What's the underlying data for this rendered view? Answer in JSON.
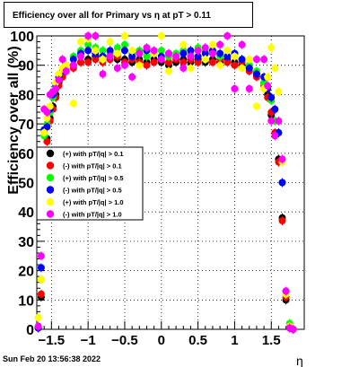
{
  "title": "Efficiency over all for Primary vs   η at pT > 0.11",
  "timestamp": "Sun Feb 20 13:56:38 2022",
  "chart_data": {
    "type": "scatter",
    "title": "Efficiency over all for Primary vs   η at pT > 0.11",
    "xlabel": "η",
    "ylabel": "Efficiency over all (%)",
    "xlim": [
      -1.7,
      1.95
    ],
    "ylim": [
      0,
      100
    ],
    "xticks": [
      -1.5,
      -1,
      -0.5,
      0,
      0.5,
      1,
      1.5
    ],
    "xtick_labels": [
      "−1.5",
      "−1",
      "−0.5",
      "0",
      "0.5",
      "1",
      "1.5"
    ],
    "yticks": [
      0,
      10,
      20,
      30,
      40,
      50,
      60,
      70,
      80,
      90,
      100
    ],
    "grid": true,
    "legend_position": "middle-left",
    "series": [
      {
        "name": "(+) with pT/|q| > 0.1",
        "color": "#000000",
        "x": [
          -1.68,
          -1.64,
          -1.6,
          -1.56,
          -1.52,
          -1.48,
          -1.44,
          -1.4,
          -1.35,
          -1.3,
          -1.2,
          -1.1,
          -1.0,
          -0.9,
          -0.8,
          -0.7,
          -0.6,
          -0.5,
          -0.4,
          -0.3,
          -0.2,
          -0.1,
          0.0,
          0.1,
          0.2,
          0.3,
          0.4,
          0.5,
          0.6,
          0.7,
          0.8,
          0.9,
          1.0,
          1.1,
          1.2,
          1.3,
          1.4,
          1.45,
          1.5,
          1.55,
          1.6,
          1.65,
          1.7,
          1.75,
          1.8
        ],
        "y": [
          0.5,
          11,
          55,
          65,
          72,
          76,
          80,
          84,
          86,
          88,
          90,
          91,
          92,
          93,
          92,
          93,
          92,
          92,
          91,
          92,
          91,
          92,
          91,
          90,
          91,
          92,
          91,
          92,
          91,
          92,
          91,
          92,
          91,
          90,
          89,
          87,
          84,
          80,
          73,
          66,
          58,
          38,
          10,
          0.5,
          0
        ]
      },
      {
        "name": "(-) with pT/|q| > 0.1",
        "color": "#ff0000",
        "x": [
          -1.68,
          -1.64,
          -1.6,
          -1.56,
          -1.52,
          -1.48,
          -1.44,
          -1.4,
          -1.35,
          -1.3,
          -1.2,
          -1.1,
          -1.0,
          -0.9,
          -0.8,
          -0.7,
          -0.6,
          -0.5,
          -0.4,
          -0.3,
          -0.2,
          -0.1,
          0.0,
          0.1,
          0.2,
          0.3,
          0.4,
          0.5,
          0.6,
          0.7,
          0.8,
          0.9,
          1.0,
          1.1,
          1.2,
          1.3,
          1.4,
          1.45,
          1.5,
          1.55,
          1.6,
          1.65,
          1.7,
          1.75,
          1.8
        ],
        "y": [
          0.5,
          12,
          56,
          64,
          71,
          75,
          79,
          83,
          86,
          88,
          89,
          91,
          91,
          92,
          91,
          92,
          93,
          91,
          92,
          91,
          90,
          91,
          92,
          91,
          92,
          91,
          92,
          91,
          92,
          91,
          92,
          91,
          90,
          91,
          88,
          86,
          83,
          79,
          74,
          67,
          57,
          37,
          11,
          0.5,
          0
        ]
      },
      {
        "name": "(+) with pT/|q| > 0.5",
        "color": "#00ff00",
        "x": [
          -1.68,
          -1.64,
          -1.6,
          -1.56,
          -1.52,
          -1.48,
          -1.44,
          -1.4,
          -1.35,
          -1.3,
          -1.2,
          -1.1,
          -1.0,
          -0.9,
          -0.8,
          -0.7,
          -0.6,
          -0.5,
          -0.4,
          -0.3,
          -0.2,
          -0.1,
          0.0,
          0.1,
          0.2,
          0.3,
          0.4,
          0.5,
          0.6,
          0.7,
          0.8,
          0.9,
          1.0,
          1.1,
          1.2,
          1.3,
          1.4,
          1.45,
          1.5,
          1.55,
          1.6,
          1.65,
          1.7,
          1.75,
          1.8
        ],
        "y": [
          1,
          17,
          66,
          70,
          74,
          79,
          82,
          85,
          88,
          90,
          93,
          95,
          97,
          96,
          95,
          94,
          96,
          97,
          94,
          95,
          93,
          94,
          95,
          93,
          94,
          95,
          94,
          96,
          95,
          94,
          93,
          95,
          94,
          92,
          90,
          88,
          84,
          82,
          78,
          71,
          67,
          50,
          12,
          2,
          0
        ]
      },
      {
        "name": "(-) with pT/|q| > 0.5",
        "color": "#0000ff",
        "x": [
          -1.68,
          -1.64,
          -1.6,
          -1.56,
          -1.52,
          -1.48,
          -1.44,
          -1.4,
          -1.35,
          -1.3,
          -1.2,
          -1.1,
          -1.0,
          -0.9,
          -0.8,
          -0.7,
          -0.6,
          -0.5,
          -0.4,
          -0.3,
          -0.2,
          -0.1,
          0.0,
          0.1,
          0.2,
          0.3,
          0.4,
          0.5,
          0.6,
          0.7,
          0.8,
          0.9,
          1.0,
          1.1,
          1.2,
          1.3,
          1.4,
          1.45,
          1.5,
          1.55,
          1.6,
          1.65,
          1.7,
          1.75,
          1.8
        ],
        "y": [
          0.5,
          21,
          68,
          69,
          75,
          80,
          83,
          86,
          88,
          90,
          92,
          94,
          95,
          94,
          93,
          95,
          94,
          95,
          93,
          94,
          95,
          94,
          93,
          94,
          93,
          94,
          95,
          93,
          94,
          95,
          94,
          93,
          94,
          92,
          89,
          87,
          86,
          82,
          79,
          75,
          67,
          50,
          13,
          0.5,
          0
        ]
      },
      {
        "name": "(+) with pT/|q| > 1.0",
        "color": "#ffff00",
        "x": [
          -1.68,
          -1.64,
          -1.6,
          -1.56,
          -1.52,
          -1.48,
          -1.44,
          -1.4,
          -1.35,
          -1.3,
          -1.2,
          -1.1,
          -1.0,
          -0.9,
          -0.8,
          -0.7,
          -0.6,
          -0.5,
          -0.4,
          -0.3,
          -0.2,
          -0.1,
          0.0,
          0.1,
          0.2,
          0.3,
          0.4,
          0.5,
          0.6,
          0.7,
          0.8,
          0.9,
          1.0,
          1.1,
          1.2,
          1.3,
          1.4,
          1.45,
          1.5,
          1.55,
          1.6,
          1.65,
          1.7,
          1.75,
          1.8
        ],
        "y": [
          4,
          17,
          67,
          72,
          76,
          81,
          84,
          87,
          89,
          90,
          77,
          98,
          99,
          95,
          92,
          98,
          94,
          100,
          95,
          90,
          96,
          94,
          100,
          88,
          93,
          97,
          89,
          95,
          92,
          97,
          90,
          95,
          93,
          89,
          92,
          76,
          82,
          86,
          96,
          89,
          81,
          57,
          12,
          1,
          0
        ]
      },
      {
        "name": "(-) with pT/|q| > 1.0",
        "color": "#ff00ff",
        "x": [
          -1.68,
          -1.64,
          -1.6,
          -1.56,
          -1.52,
          -1.48,
          -1.44,
          -1.4,
          -1.35,
          -1.3,
          -1.2,
          -1.1,
          -1.0,
          -0.9,
          -0.8,
          -0.7,
          -0.6,
          -0.5,
          -0.4,
          -0.3,
          -0.2,
          -0.1,
          0.0,
          0.1,
          0.2,
          0.3,
          0.4,
          0.5,
          0.6,
          0.7,
          0.8,
          0.9,
          1.0,
          1.1,
          1.2,
          1.3,
          1.4,
          1.45,
          1.5,
          1.55,
          1.6,
          1.65,
          1.7,
          1.75,
          1.8
        ],
        "y": [
          1,
          25,
          75,
          74,
          80,
          81,
          82,
          85,
          92,
          88,
          90,
          93,
          100,
          100,
          87,
          93,
          89,
          90,
          86,
          94,
          96,
          95,
          92,
          94,
          93,
          89,
          93,
          95,
          96,
          94,
          97,
          100,
          82,
          97,
          82,
          92,
          92,
          83,
          71,
          66,
          71,
          58,
          13,
          0.5,
          0
        ]
      }
    ]
  }
}
